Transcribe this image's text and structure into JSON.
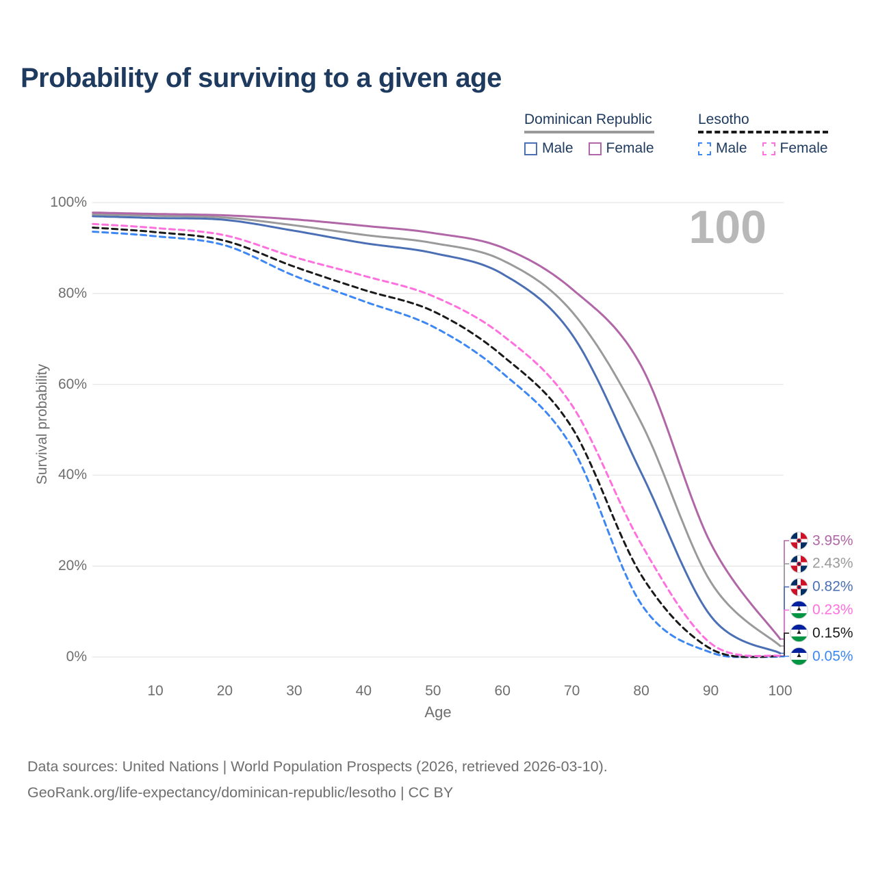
{
  "title": "Probability of surviving to a given age",
  "watermark_age_label": "100",
  "legend": {
    "groups": [
      {
        "label": "Dominican Republic",
        "line_style": "solid",
        "underline_color": "#9a9a9a",
        "items": [
          {
            "label": "Male",
            "color": "#4b6fb4"
          },
          {
            "label": "Female",
            "color": "#b066a7"
          }
        ]
      },
      {
        "label": "Lesotho",
        "line_style": "dashed",
        "underline_color": "#1a1a1a",
        "items": [
          {
            "label": "Male",
            "color": "#3d87f5"
          },
          {
            "label": "Female",
            "color": "#ff70df"
          }
        ]
      }
    ]
  },
  "chart_data": {
    "type": "line",
    "title": "Probability of surviving to a given age",
    "xlabel": "Age",
    "ylabel": "Survival probability",
    "xlim": [
      1,
      100
    ],
    "ylim": [
      0,
      100
    ],
    "grid": "horizontal",
    "legend_position": "top-right",
    "x_ticks": [
      10,
      20,
      30,
      40,
      50,
      60,
      70,
      80,
      90,
      100
    ],
    "y_ticks": [
      {
        "value": 0,
        "label": "0%"
      },
      {
        "value": 20,
        "label": "20%"
      },
      {
        "value": 40,
        "label": "40%"
      },
      {
        "value": 60,
        "label": "60%"
      },
      {
        "value": 80,
        "label": "80%"
      },
      {
        "value": 100,
        "label": "100%"
      }
    ],
    "x": [
      1,
      10,
      20,
      30,
      40,
      50,
      60,
      70,
      80,
      90,
      100
    ],
    "series": [
      {
        "name": "Dominican Republic Female",
        "country": "Dominican Republic",
        "sex": "Female",
        "color": "#b066a7",
        "dash": "solid",
        "flag": "dominican-republic",
        "end_label": "3.95%",
        "values": [
          97.8,
          97.5,
          97.2,
          96.3,
          94.9,
          93.3,
          90.1,
          81.0,
          64.0,
          25.0,
          3.95
        ]
      },
      {
        "name": "Dominican Republic Both sexes",
        "country": "Dominican Republic",
        "sex": "Both sexes",
        "color": "#9a9a9a",
        "dash": "solid",
        "flag": "dominican-republic",
        "end_label": "2.43%",
        "values": [
          97.4,
          97.1,
          96.7,
          95.0,
          92.9,
          91.1,
          87.3,
          76.0,
          51.5,
          16.5,
          2.43
        ]
      },
      {
        "name": "Dominican Republic Male",
        "country": "Dominican Republic",
        "sex": "Male",
        "color": "#4b6fb4",
        "dash": "solid",
        "flag": "dominican-republic",
        "end_label": "0.82%",
        "values": [
          97.0,
          96.6,
          96.2,
          93.8,
          91.1,
          88.9,
          84.3,
          71.0,
          40.5,
          9.0,
          0.82
        ]
      },
      {
        "name": "Lesotho Female",
        "country": "Lesotho",
        "sex": "Female",
        "color": "#ff70df",
        "dash": "dashed",
        "flag": "lesotho",
        "end_label": "0.23%",
        "values": [
          95.3,
          94.4,
          92.8,
          88.0,
          83.9,
          79.4,
          70.8,
          55.4,
          24.8,
          3.0,
          0.23
        ]
      },
      {
        "name": "Lesotho Both sexes",
        "country": "Lesotho",
        "sex": "Both sexes",
        "color": "#1a1a1a",
        "dash": "dashed",
        "flag": "lesotho",
        "end_label": "0.15%",
        "values": [
          94.5,
          93.5,
          91.6,
          85.9,
          80.8,
          76.1,
          66.3,
          50.5,
          18.0,
          1.8,
          0.15
        ]
      },
      {
        "name": "Lesotho Male",
        "country": "Lesotho",
        "sex": "Male",
        "color": "#3d87f5",
        "dash": "dashed",
        "flag": "lesotho",
        "end_label": "0.05%",
        "values": [
          93.6,
          92.6,
          90.6,
          83.9,
          78.3,
          72.7,
          62.5,
          46.2,
          11.6,
          1.0,
          0.05
        ]
      }
    ]
  },
  "footer": {
    "line1": "Data sources: United Nations | World Population Prospects (2026, retrieved 2026-03-10).",
    "line2": "GeoRank.org/life-expectancy/dominican-republic/lesotho | CC BY"
  }
}
